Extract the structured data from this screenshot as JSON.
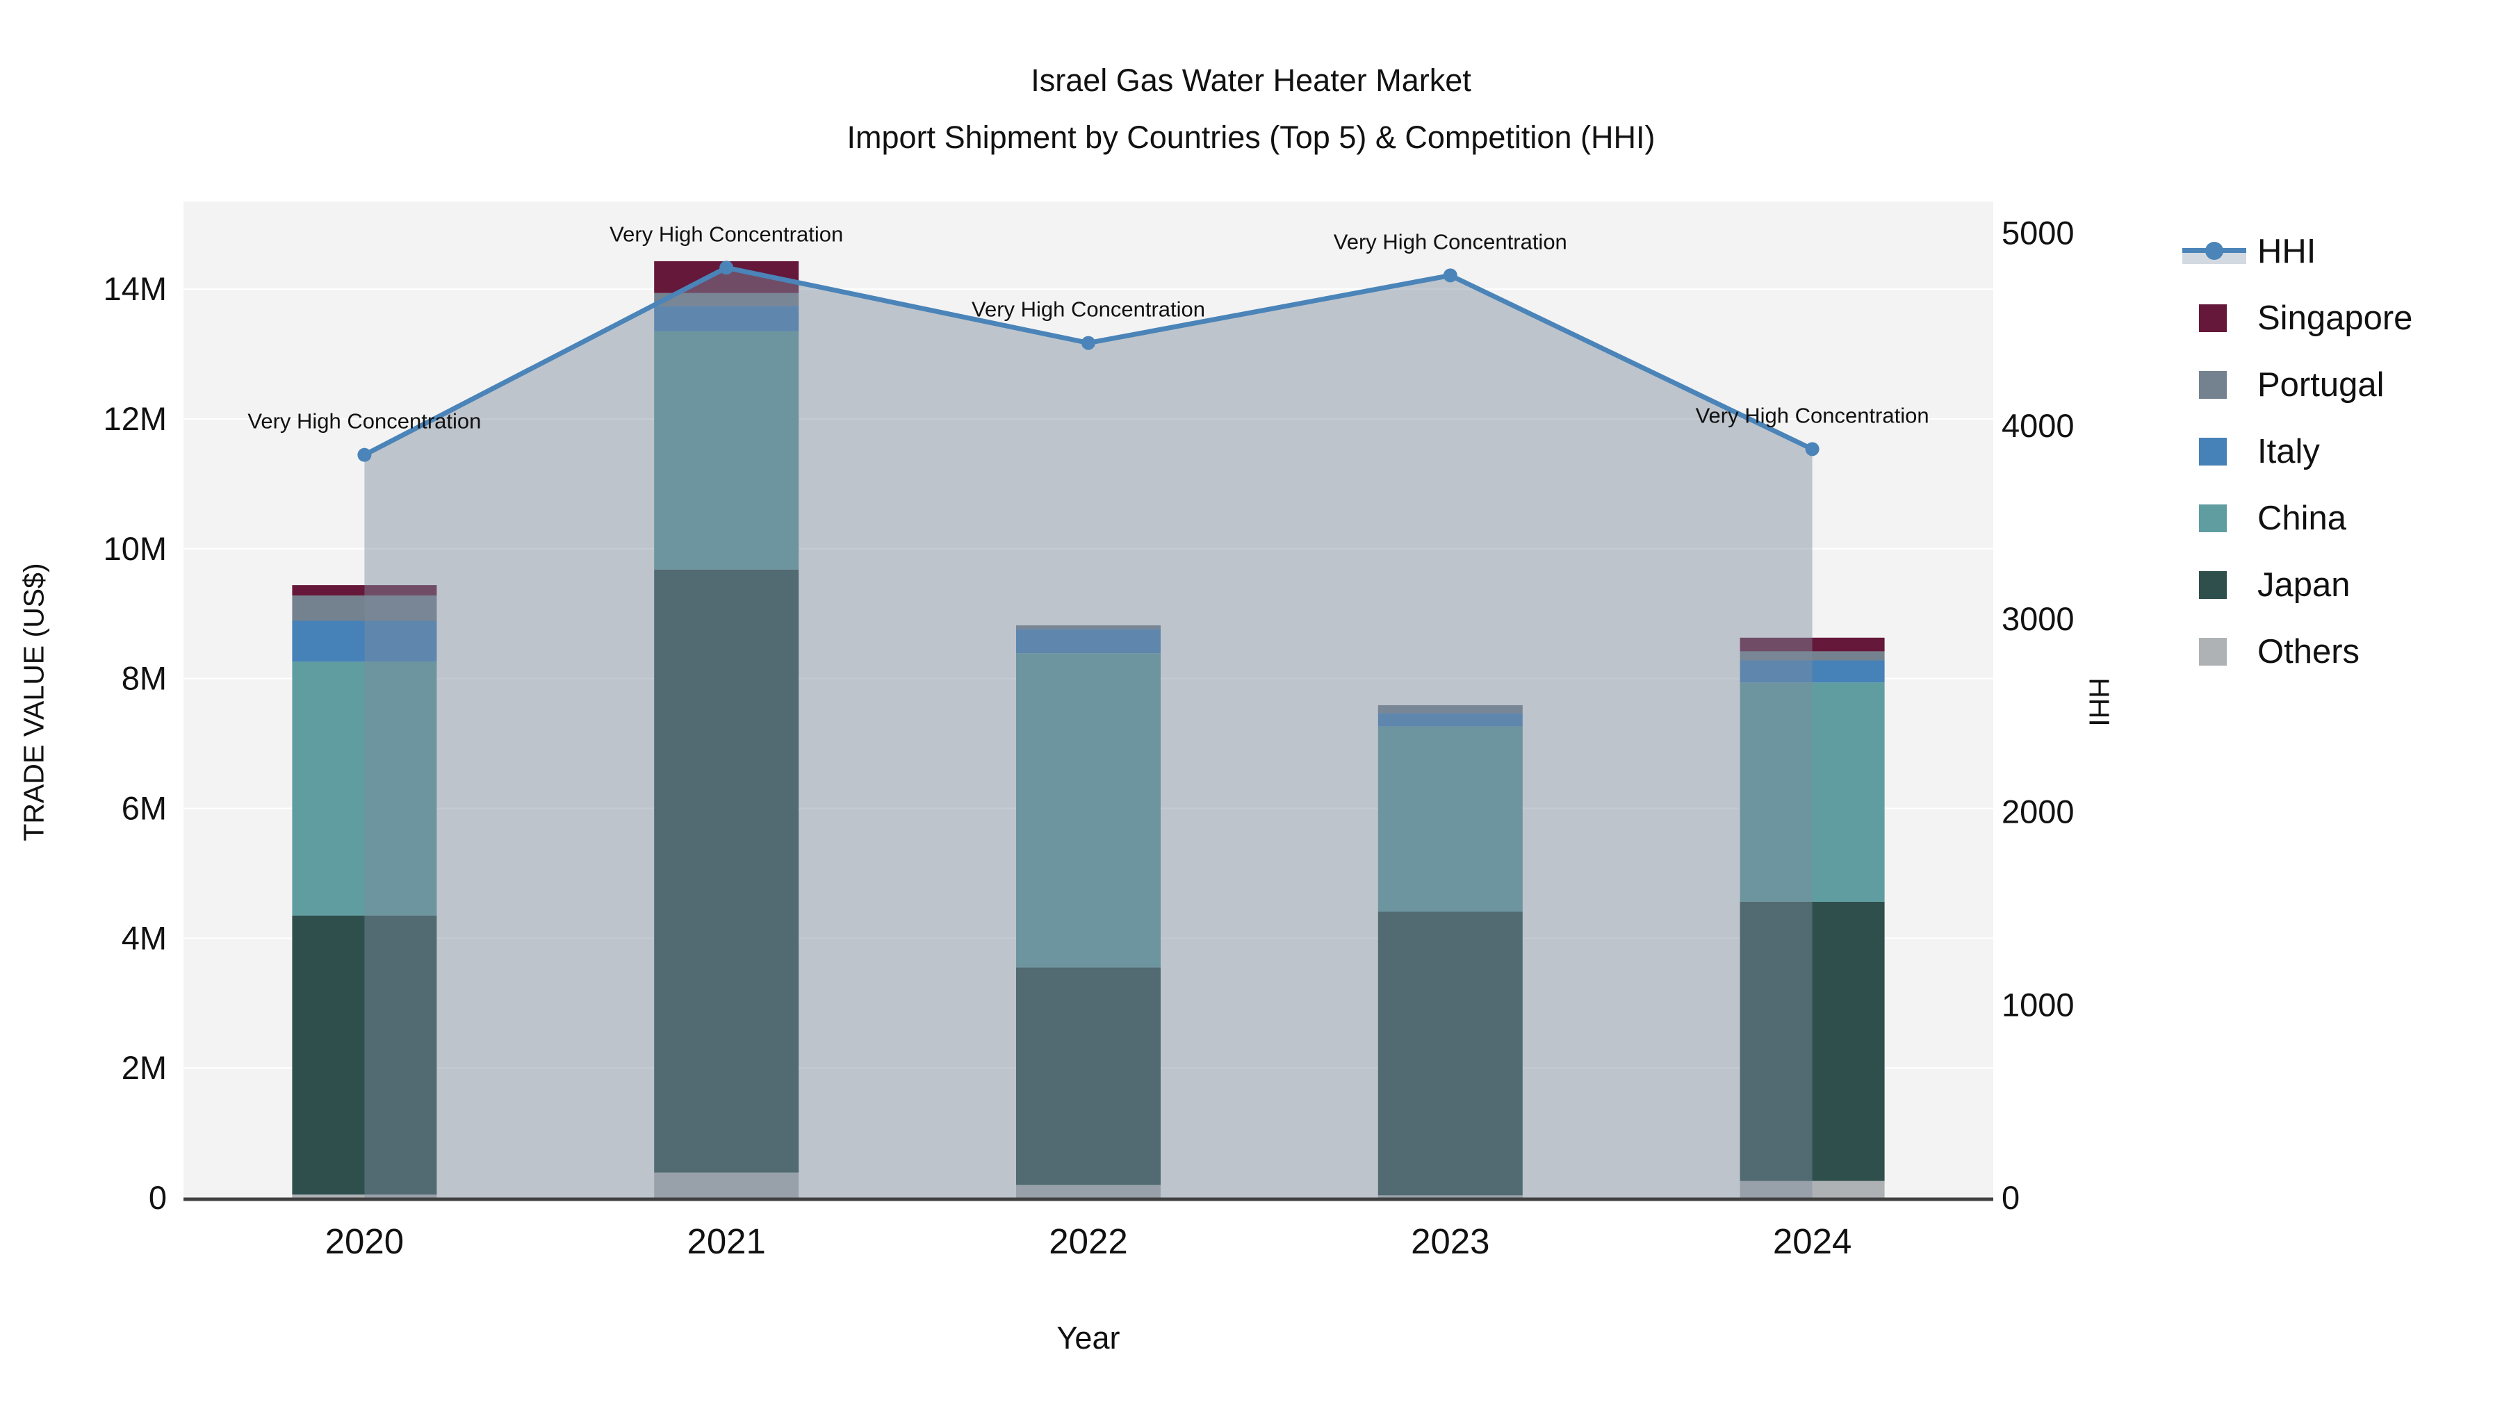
{
  "chart_data": {
    "type": [
      "bar",
      "line"
    ],
    "title": "Israel Gas Water Heater Market",
    "subtitle": "Import Shipment by Countries (Top 5) & Competition (HHI)",
    "xlabel": "Year",
    "ylabel_left": "TRADE VALUE (US$)",
    "ylabel_right": "HHI",
    "categories": [
      "2020",
      "2021",
      "2022",
      "2023",
      "2024"
    ],
    "bar_value_unit": "million US$",
    "series": [
      {
        "name": "Others",
        "color": "#AEB2B5",
        "values": [
          0.05,
          0.39,
          0.2,
          0.04,
          0.26
        ]
      },
      {
        "name": "Japan",
        "color": "#2F4F4D",
        "values": [
          4.3,
          9.29,
          3.35,
          4.37,
          4.3
        ]
      },
      {
        "name": "China",
        "color": "#5F9DA0",
        "values": [
          3.91,
          3.67,
          4.84,
          2.85,
          3.38
        ]
      },
      {
        "name": "Italy",
        "color": "#4681B8",
        "values": [
          0.63,
          0.39,
          0.37,
          0.21,
          0.34
        ]
      },
      {
        "name": "Portugal",
        "color": "#74828F",
        "values": [
          0.39,
          0.2,
          0.06,
          0.12,
          0.14
        ]
      },
      {
        "name": "Singapore",
        "color": "#65183A",
        "values": [
          0.16,
          0.49,
          0.0,
          0.0,
          0.21
        ]
      }
    ],
    "line_series": {
      "name": "HHI",
      "color": "#4A84B8",
      "area_fill": "rgba(127,140,158,0.45)",
      "values": [
        3850,
        4820,
        4430,
        4780,
        3880
      ]
    },
    "annotations": [
      "Very High Concentration",
      "Very High Concentration",
      "Very High Concentration",
      "Very High Concentration",
      "Very High Concentration"
    ],
    "yaxis_left": {
      "tick_labels": [
        "0",
        "2M",
        "4M",
        "6M",
        "8M",
        "10M",
        "12M",
        "14M"
      ],
      "tick_values": [
        0,
        2,
        4,
        6,
        8,
        10,
        12,
        14
      ],
      "range": [
        0,
        15.35
      ],
      "grid": true
    },
    "yaxis_right": {
      "tick_labels": [
        "0",
        "1000",
        "2000",
        "3000",
        "4000",
        "5000"
      ],
      "tick_values": [
        0,
        1000,
        2000,
        3000,
        4000,
        5000
      ],
      "range": [
        0,
        5163
      ],
      "grid": false
    },
    "legend_order": [
      "HHI",
      "Singapore",
      "Portugal",
      "Italy",
      "China",
      "Japan",
      "Others"
    ],
    "legend_position": "right"
  }
}
